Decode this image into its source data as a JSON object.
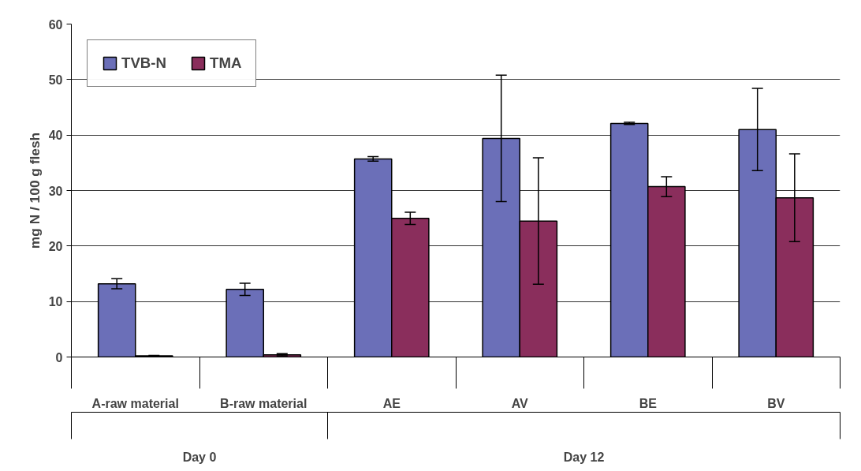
{
  "chart_data": {
    "type": "bar",
    "ylabel": "mg N / 100 g flesh",
    "categories": [
      "A-raw material",
      "B-raw material",
      "AE",
      "AV",
      "BE",
      "BV"
    ],
    "series": [
      {
        "name": "TVB-N",
        "color": "#6b6fb8",
        "values": [
          13.2,
          12.2,
          35.7,
          39.4,
          42.1,
          41.0
        ],
        "errors": [
          0.9,
          1.1,
          0.4,
          11.4,
          0.2,
          7.4
        ]
      },
      {
        "name": "TMA",
        "color": "#8a2e5c",
        "values": [
          0.2,
          0.4,
          25.0,
          24.5,
          30.7,
          28.7
        ],
        "errors": [
          0.1,
          0.2,
          1.1,
          11.4,
          1.8,
          7.9
        ]
      }
    ],
    "annotations": [
      "Day 0",
      "Day 12"
    ],
    "ylim": [
      0,
      60
    ],
    "yticks": [
      0,
      10,
      20,
      30,
      40,
      50,
      60
    ],
    "grid": "y",
    "legend": "top left"
  }
}
